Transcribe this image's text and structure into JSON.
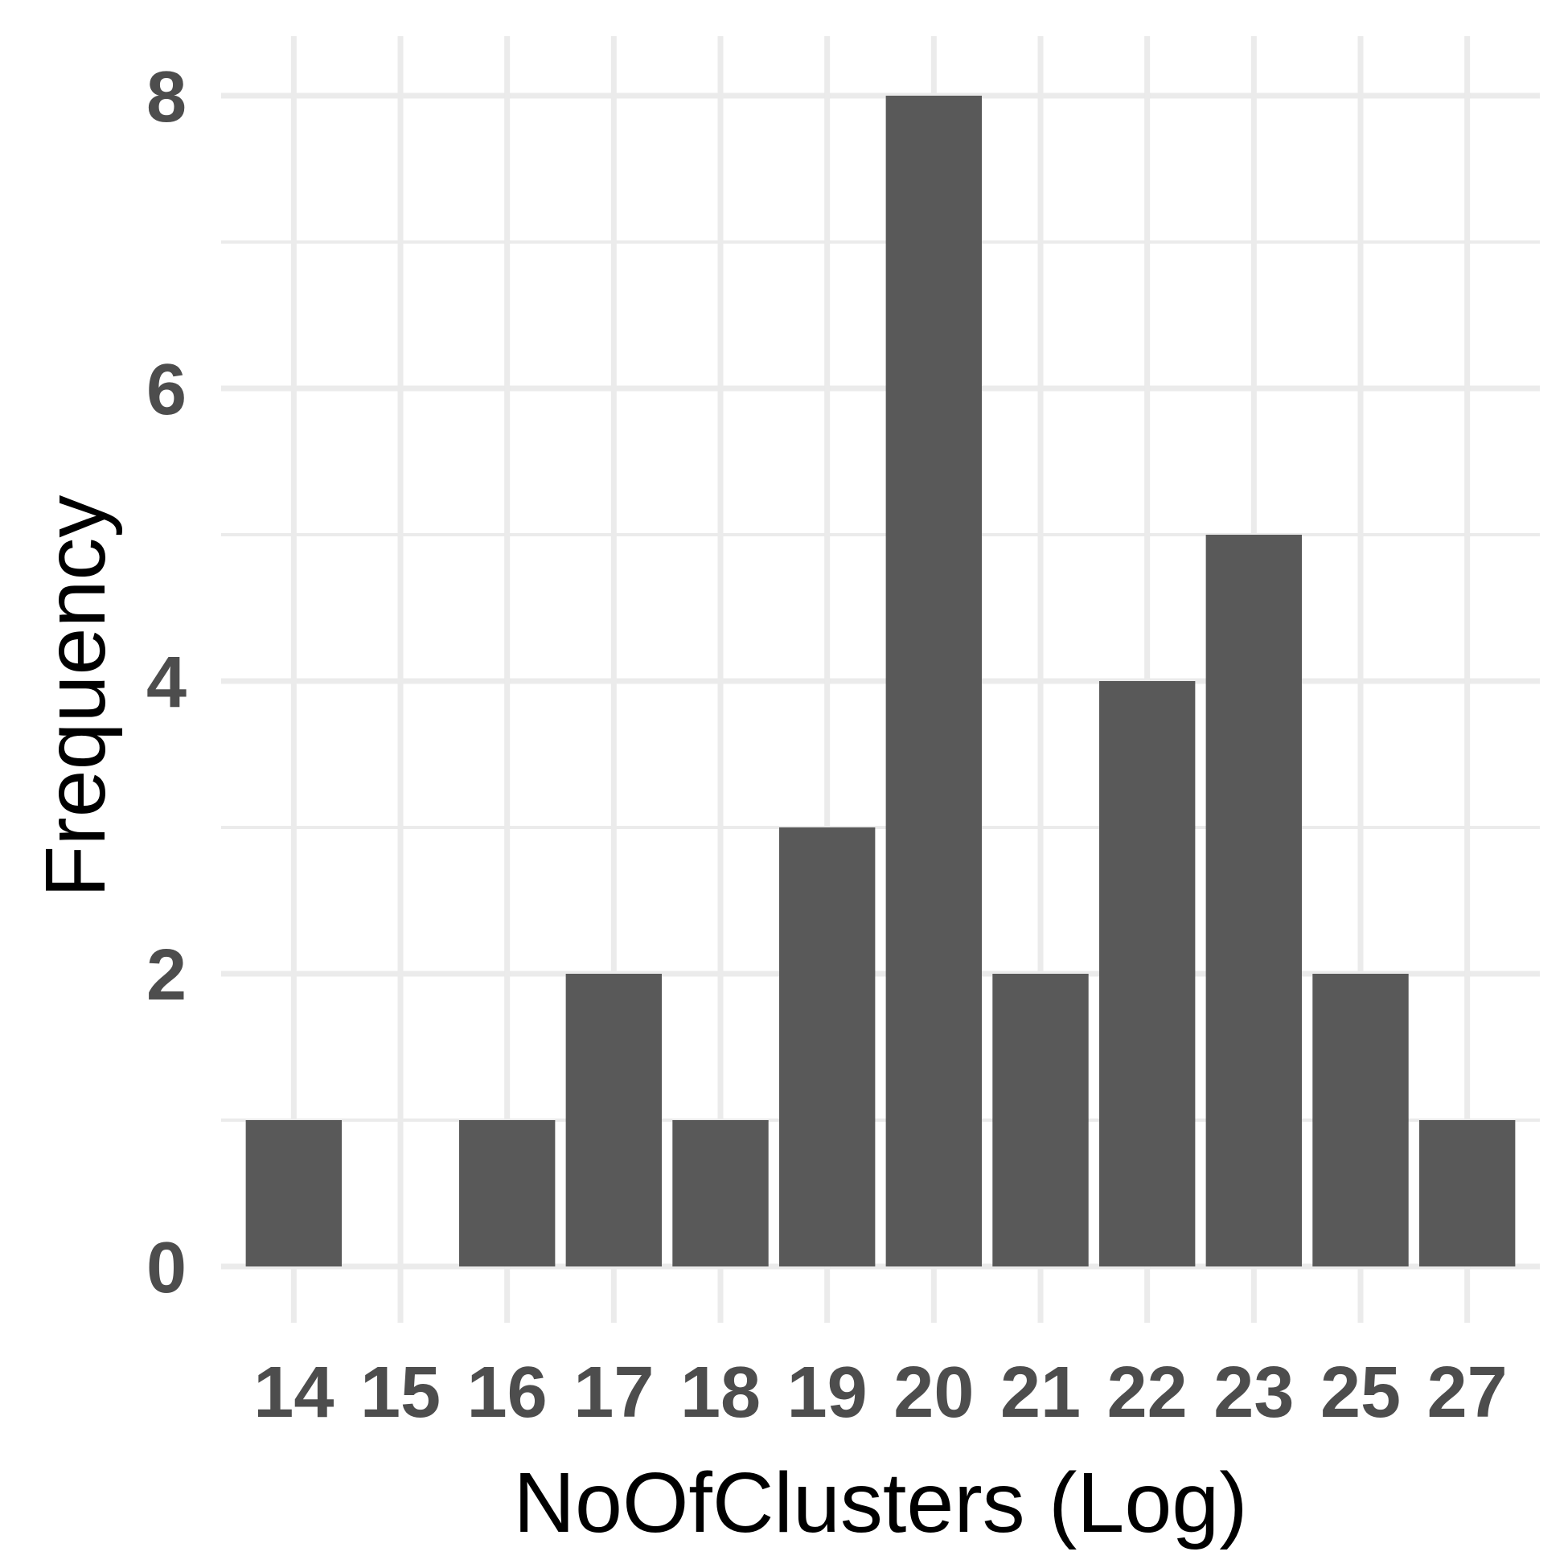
{
  "chart_data": {
    "type": "bar",
    "categories": [
      "14",
      "15",
      "16",
      "17",
      "18",
      "19",
      "20",
      "21",
      "22",
      "23",
      "25",
      "27"
    ],
    "values": [
      1,
      0,
      1,
      2,
      1,
      3,
      8,
      2,
      4,
      5,
      2,
      1
    ],
    "xlabel": "NoOfClusters (Log)",
    "ylabel": "Frequency",
    "ylim": [
      0,
      8
    ],
    "yticks": [
      "0",
      "2",
      "4",
      "6",
      "8"
    ],
    "grid": true,
    "colors": {
      "bar": "#595959",
      "grid": "#ebebeb",
      "tick_text": "#4d4d4d",
      "title_text": "#000000"
    }
  }
}
